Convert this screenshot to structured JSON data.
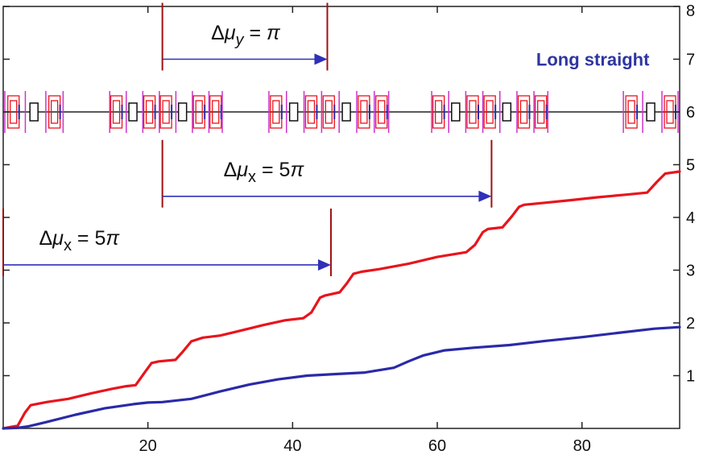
{
  "chart_data": {
    "type": "line",
    "title": "",
    "xlabel": "",
    "ylabel": "",
    "xlim": [
      0,
      93.5
    ],
    "ylim": [
      0,
      8
    ],
    "grid": false,
    "x_ticks": [
      20,
      40,
      60,
      80
    ],
    "y_ticks": [
      1,
      2,
      3,
      4,
      5,
      6,
      7,
      8
    ],
    "colors": {
      "red": "#e8141c",
      "blue": "#2a2aa8",
      "arrow": "#3030b8",
      "marker": "#a01010",
      "magenta": "#cc33cc"
    },
    "series": [
      {
        "color": "#e8141c",
        "x": [
          0,
          2,
          3,
          3.8,
          6,
          9,
          12,
          15,
          17,
          18.3,
          19.5,
          20.5,
          21.5,
          23.8,
          24.8,
          26,
          27.6,
          30,
          33,
          36,
          39,
          41.5,
          42.6,
          43.8,
          44.5,
          46.5,
          47.5,
          48.4,
          49.5,
          52,
          56,
          60,
          64,
          65.2,
          66.3,
          67,
          69,
          70.3,
          71.3,
          72,
          75,
          78,
          82,
          86,
          89,
          90.4,
          91.5,
          93.5
        ],
        "y": [
          0,
          0.05,
          0.3,
          0.44,
          0.5,
          0.56,
          0.66,
          0.75,
          0.8,
          0.82,
          1.05,
          1.24,
          1.27,
          1.3,
          1.45,
          1.65,
          1.72,
          1.76,
          1.86,
          1.96,
          2.05,
          2.09,
          2.2,
          2.48,
          2.52,
          2.58,
          2.75,
          2.93,
          2.97,
          3.02,
          3.12,
          3.25,
          3.34,
          3.48,
          3.72,
          3.78,
          3.81,
          4.02,
          4.2,
          4.24,
          4.28,
          4.32,
          4.38,
          4.43,
          4.47,
          4.68,
          4.83,
          4.87
        ]
      },
      {
        "color": "#2a2aa8",
        "x": [
          0,
          2,
          3.5,
          6,
          10,
          14,
          18,
          20,
          22,
          26,
          30,
          34,
          38,
          42,
          46,
          50,
          54,
          56,
          58,
          61,
          65,
          70,
          75,
          80,
          85,
          90,
          93.5
        ],
        "y": [
          0,
          0.01,
          0.04,
          0.12,
          0.26,
          0.38,
          0.46,
          0.49,
          0.5,
          0.56,
          0.7,
          0.83,
          0.93,
          1.0,
          1.03,
          1.06,
          1.15,
          1.27,
          1.38,
          1.48,
          1.53,
          1.58,
          1.66,
          1.73,
          1.81,
          1.89,
          1.92
        ]
      }
    ],
    "annotations": [
      {
        "id": "dmu-y",
        "delta": "Δ",
        "mu": "μ",
        "sub": "y",
        "rest": " = ",
        "pi_prefix": "",
        "pi": "π",
        "x_start": 22,
        "x_end": 44.8,
        "y": 7.0,
        "label_x": 33.5,
        "label_y": 7.5
      },
      {
        "id": "dmu-x-upper",
        "delta": "Δ",
        "mu": "μ",
        "sub": "x",
        "rest": " = ",
        "pi_prefix": "5",
        "pi": "π",
        "x_start": 22,
        "x_end": 67.5,
        "y": 4.4,
        "label_x": 36,
        "label_y": 4.9
      },
      {
        "id": "dmu-x-lower",
        "delta": "Δ",
        "mu": "μ",
        "sub": "x",
        "rest": " = ",
        "pi_prefix": "5",
        "pi": "π",
        "x_start": 0,
        "x_end": 45.3,
        "y": 3.1,
        "label_x": 10.5,
        "label_y": 3.6
      }
    ],
    "region_label": {
      "text": "Long straight",
      "x": 81.5,
      "y": 7.0
    },
    "lattice": {
      "y": 6,
      "clusters": [
        {
          "x_start": 0,
          "x_end": 8.5
        },
        {
          "x_start": 14.5,
          "x_end": 30.5
        },
        {
          "x_start": 36.5,
          "x_end": 53.5
        },
        {
          "x_start": 59,
          "x_end": 75.5
        },
        {
          "x_start": 85.5,
          "x_end": 93.5
        }
      ]
    }
  }
}
